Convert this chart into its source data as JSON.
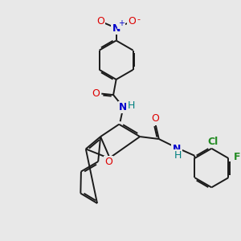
{
  "bg_color": "#e8e8e8",
  "bond_color": "#1a1a1a",
  "bond_width": 1.4,
  "atom_colors": {
    "O": "#dd0000",
    "N": "#0000cc",
    "Cl": "#228b22",
    "F": "#228b22",
    "H": "#008080",
    "C": "#1a1a1a"
  },
  "font_size": 9,
  "font_size_small": 7
}
